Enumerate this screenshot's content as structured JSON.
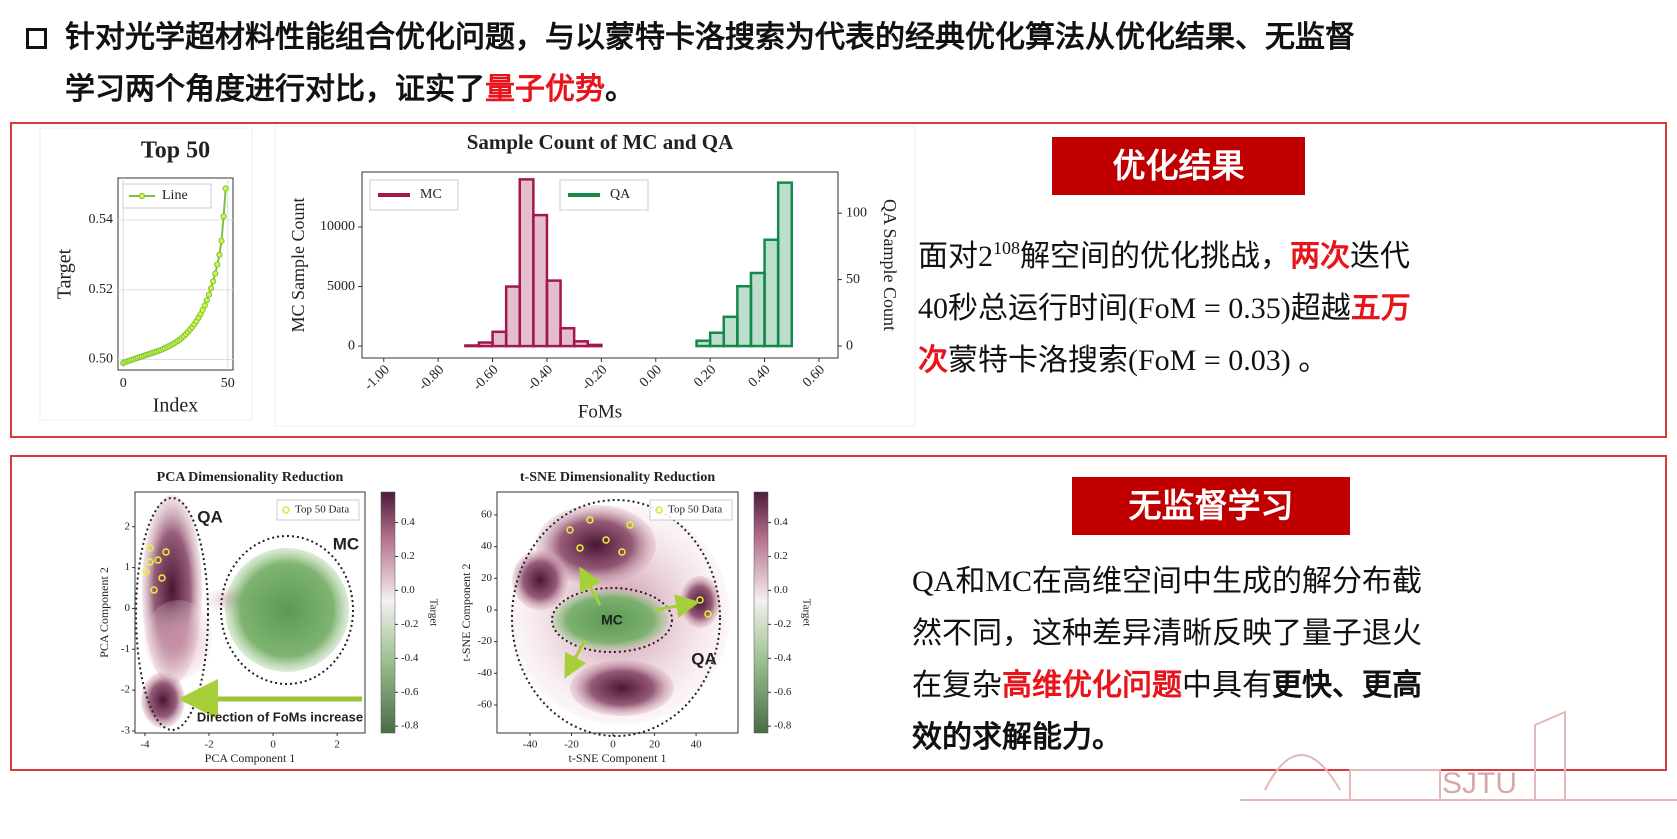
{
  "header": {
    "lines": [
      [
        {
          "text": "针对光学超材料性能组合优化问题，与以蒙特卡洛搜索为代表的经典优化算法从优化结果、无监督"
        }
      ],
      [
        {
          "text": "学习两个角度进行对比，证实了"
        },
        {
          "text": "量子优势",
          "style": "emphasis"
        },
        {
          "text": "。"
        }
      ]
    ]
  },
  "optimization": {
    "label": "优化结果",
    "lines": [
      [
        {
          "text": "面对2"
        },
        {
          "text": "108",
          "style": "superscript"
        },
        {
          "text": "解空间的优化挑战，"
        },
        {
          "text": "两次",
          "style": "emphasis"
        },
        {
          "text": "迭代"
        }
      ],
      [
        {
          "text": "40秒总运行时间(FoM  =  0.35)超越"
        },
        {
          "text": "五万",
          "style": "emphasis"
        }
      ],
      [
        {
          "text": "次",
          "style": "emphasis"
        },
        {
          "text": "蒙特卡洛搜索(FoM = 0.03) 。"
        }
      ]
    ],
    "top50": {
      "type": "line",
      "title": "Top 50",
      "xlabel": "Index",
      "ylabel": "Target",
      "legend": "Line",
      "color": "#7cc242",
      "marker_color": "#d4f53c",
      "grid": true,
      "xlim": [
        -2.5,
        52.5
      ],
      "ylim": [
        0.497,
        0.552
      ],
      "xticks": [
        0,
        50
      ],
      "yticks": [
        {
          "value": 0.5,
          "label": "0.50"
        },
        {
          "value": 0.52,
          "label": "0.52"
        },
        {
          "value": 0.54,
          "label": "0.54"
        }
      ],
      "x": [
        0,
        1,
        2,
        3,
        4,
        5,
        6,
        7,
        8,
        9,
        10,
        11,
        12,
        13,
        14,
        15,
        16,
        17,
        18,
        19,
        20,
        21,
        22,
        23,
        24,
        25,
        26,
        27,
        28,
        29,
        30,
        31,
        32,
        33,
        34,
        35,
        36,
        37,
        38,
        39,
        40,
        41,
        42,
        43,
        44,
        45,
        46,
        47,
        48,
        49
      ],
      "values": [
        0.499,
        0.4993,
        0.4995,
        0.4997,
        0.4999,
        0.5001,
        0.5003,
        0.5005,
        0.5007,
        0.5009,
        0.5011,
        0.5013,
        0.5015,
        0.5017,
        0.5019,
        0.5021,
        0.5023,
        0.5025,
        0.5027,
        0.503,
        0.5033,
        0.5036,
        0.5039,
        0.5042,
        0.5045,
        0.5049,
        0.5053,
        0.5057,
        0.5062,
        0.5067,
        0.5073,
        0.5079,
        0.5086,
        0.5093,
        0.5101,
        0.511,
        0.512,
        0.513,
        0.5142,
        0.5155,
        0.517,
        0.5186,
        0.5204,
        0.5224,
        0.5246,
        0.5272,
        0.53,
        0.534,
        0.541,
        0.549
      ]
    },
    "histogram": {
      "type": "histogram",
      "title": "Sample Count of MC and QA",
      "xlabel": "FoMs",
      "ylabel": "MC Sample Count",
      "y2label": "QA Sample Count",
      "bins": [
        -1.0,
        -0.95,
        -0.9,
        -0.85,
        -0.8,
        -0.75,
        -0.7,
        -0.65,
        -0.6,
        -0.55,
        -0.5,
        -0.45,
        -0.4,
        -0.35,
        -0.3,
        -0.25,
        -0.2,
        -0.15,
        -0.1,
        -0.05,
        0.0,
        0.05,
        0.1,
        0.15,
        0.2,
        0.25,
        0.3,
        0.35,
        0.4,
        0.45,
        0.5,
        0.55,
        0.6
      ],
      "series": [
        {
          "name": "MC",
          "color": "#a3174f",
          "values": [
            0,
            0,
            0,
            0,
            0,
            0,
            50,
            300,
            1200,
            5000,
            14000,
            11000,
            5500,
            1500,
            400,
            100,
            0,
            0,
            0,
            0,
            0,
            0,
            0,
            0,
            0,
            0,
            0,
            0,
            0,
            0,
            0,
            0
          ]
        },
        {
          "name": "QA",
          "color": "#13894a",
          "axis": "y2",
          "values": [
            0,
            0,
            0,
            0,
            0,
            0,
            0,
            0,
            0,
            0,
            0,
            0,
            0,
            0,
            0,
            0,
            0,
            0,
            0,
            0,
            0,
            0,
            0,
            4,
            10,
            22,
            45,
            55,
            80,
            123,
            0,
            0
          ]
        }
      ],
      "xlim": [
        -1.08,
        0.67
      ],
      "ylim": [
        -1000,
        14620
      ],
      "y2lim": [
        -9,
        131
      ],
      "xticks": [
        {
          "value": -1.0,
          "label": "-1.00"
        },
        {
          "value": -0.8,
          "label": "-0.80"
        },
        {
          "value": -0.6,
          "label": "-0.60"
        },
        {
          "value": -0.4,
          "label": "-0.40"
        },
        {
          "value": -0.2,
          "label": "-0.20"
        },
        {
          "value": 0.0,
          "label": "0.00"
        },
        {
          "value": 0.2,
          "label": "0.20"
        },
        {
          "value": 0.4,
          "label": "0.40"
        },
        {
          "value": 0.6,
          "label": "0.60"
        }
      ],
      "yticks": [
        0,
        5000,
        10000
      ],
      "y2ticks": [
        0,
        50,
        100
      ]
    }
  },
  "unsupervised": {
    "label": "无监督学习",
    "lines": [
      [
        {
          "text": "QA和MC在高维空间中生成的解分布截"
        }
      ],
      [
        {
          "text": "然不同，这种差异清晰反映了量子退火"
        }
      ],
      [
        {
          "text": "在复杂"
        },
        {
          "text": "高维优化问题",
          "style": "emphasis"
        },
        {
          "text": "中具有"
        },
        {
          "text": "更快、更高",
          "style": "bold"
        }
      ],
      [
        {
          "text": "效的求解能力。",
          "style": "bold"
        }
      ]
    ],
    "pca": {
      "type": "scatter",
      "title": "PCA Dimensionality Reduction",
      "xlabel": "PCA Component 1",
      "ylabel": "PCA Component 2",
      "legend": "Top 50 Data",
      "annotations": [
        "QA",
        "MC",
        "Direction of FoMs increase"
      ],
      "xlim": [
        -4.31,
        2.87
      ],
      "ylim": [
        -3.05,
        2.85
      ],
      "xticks": [
        -4,
        -2,
        0,
        2
      ],
      "yticks": [
        -3,
        -2,
        -1,
        0,
        1,
        2
      ],
      "colorbar": {
        "label": "Target",
        "lim": [
          -0.84,
          0.58
        ],
        "ticks": [
          0.4,
          0.2,
          {
            "value": 0.0,
            "label": "0.0"
          },
          -0.2,
          -0.4,
          -0.6,
          -0.8
        ]
      }
    },
    "tsne": {
      "type": "scatter",
      "title": "t-SNE Dimensionality Reduction",
      "xlabel": "t-SNE Component 1",
      "ylabel": "t-SNE Component 2",
      "legend": "Top 50 Data",
      "annotations": [
        "MC",
        "QA"
      ],
      "xlim": [
        -55.9,
        60.2
      ],
      "ylim": [
        -77.7,
        74.5
      ],
      "xticks": [
        -40,
        -20,
        0,
        20,
        40
      ],
      "yticks": [
        -60,
        -40,
        -20,
        0,
        20,
        40,
        60
      ],
      "colorbar": {
        "label": "Target",
        "lim": [
          -0.84,
          0.58
        ],
        "ticks": [
          0.4,
          0.2,
          {
            "value": 0.0,
            "label": "0.0"
          },
          -0.2,
          -0.4,
          -0.6,
          -0.8
        ]
      }
    }
  },
  "logo": "SJTU"
}
